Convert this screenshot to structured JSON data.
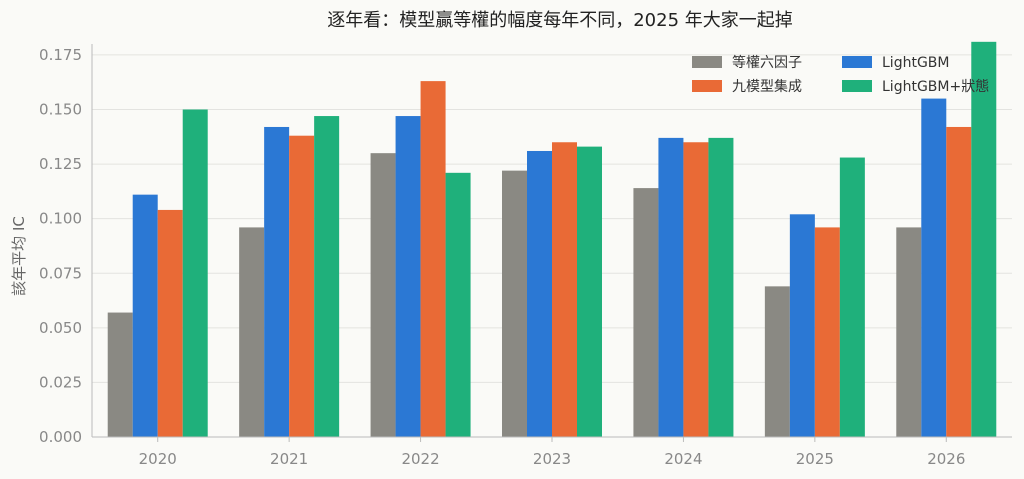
{
  "chart_data": {
    "type": "bar",
    "title": "逐年看：模型贏等權的幅度每年不同，2025 年大家一起掉",
    "xlabel": "",
    "ylabel": "該年平均 IC",
    "ylim": [
      0,
      0.18
    ],
    "yticks": [
      "0.000",
      "0.025",
      "0.050",
      "0.075",
      "0.100",
      "0.125",
      "0.150",
      "0.175"
    ],
    "ytick_values": [
      0,
      0.025,
      0.05,
      0.075,
      0.1,
      0.125,
      0.15,
      0.175
    ],
    "categories": [
      "2020",
      "2021",
      "2022",
      "2023",
      "2024",
      "2025",
      "2026"
    ],
    "grid": "horizontal",
    "legend_position": "top-right",
    "series": [
      {
        "name": "等權六因子",
        "color": "#8a8983",
        "values": [
          0.057,
          0.096,
          0.13,
          0.122,
          0.114,
          0.069,
          0.096
        ]
      },
      {
        "name": "LightGBM",
        "color": "#2b78d4",
        "values": [
          0.111,
          0.142,
          0.147,
          0.131,
          0.137,
          0.102,
          0.155
        ]
      },
      {
        "name": "九模型集成",
        "color": "#e96a36",
        "values": [
          0.104,
          0.138,
          0.163,
          0.135,
          0.135,
          0.096,
          0.142
        ]
      },
      {
        "name": "LightGBM+狀態",
        "color": "#1fb07b",
        "values": [
          0.15,
          0.147,
          0.121,
          0.133,
          0.137,
          0.128,
          0.181
        ]
      }
    ]
  }
}
